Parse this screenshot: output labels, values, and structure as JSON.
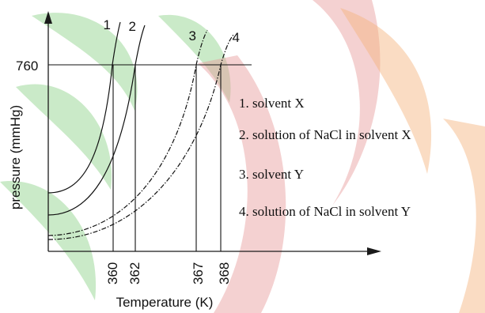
{
  "chart_data": {
    "type": "line",
    "title": "",
    "xlabel": "Temperature (K)",
    "ylabel": "pressure (mmHg)",
    "x_ticks": [
      "360",
      "362",
      "367",
      "368"
    ],
    "y_ticks": [
      "760"
    ],
    "reference_pressure": 760,
    "boiling_points": [
      360,
      362,
      367,
      368
    ],
    "series": [
      {
        "name": "1",
        "legend": "1. solvent X",
        "boiling_point": 360,
        "style": "solid"
      },
      {
        "name": "2",
        "legend": "2. solution of NaCl in solvent X",
        "boiling_point": 362,
        "style": "solid"
      },
      {
        "name": "3",
        "legend": "3. solvent Y",
        "boiling_point": 367,
        "style": "dash-dot"
      },
      {
        "name": "4",
        "legend": "4. solution of NaCl in solvent Y",
        "boiling_point": 368,
        "style": "dash-dot"
      }
    ],
    "legend_position": "right",
    "grid": false
  },
  "colors": {
    "watermark_green": "#9fd89a",
    "watermark_red": "#e79a98",
    "watermark_orange": "#f4b27a",
    "ink": "#111111"
  }
}
